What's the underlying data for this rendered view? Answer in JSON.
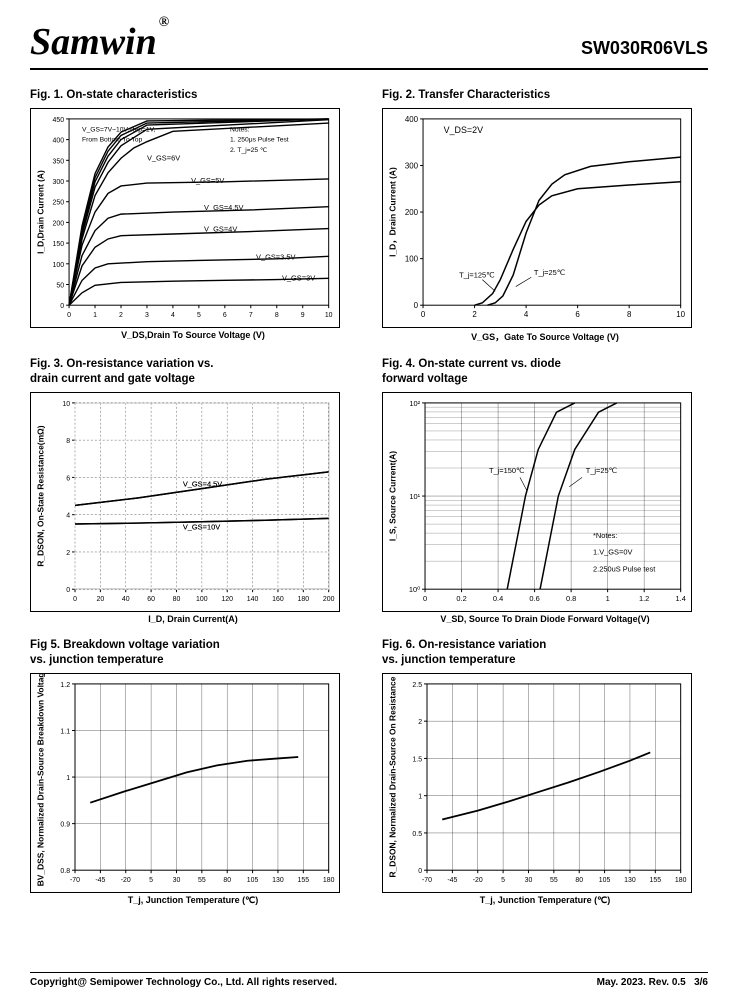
{
  "header": {
    "logo": "Samwin",
    "trademark": "®",
    "part_number": "SW030R06VLS"
  },
  "footer": {
    "copyright": "Copyright@ Semipower Technology Co., Ltd. All rights reserved.",
    "date": "May. 2023. Rev. 0.5",
    "page": "3/6"
  },
  "fig1": {
    "title": "Fig. 1. On-state characteristics",
    "xlabel": "V_DS,Drain To Source Voltage (V)",
    "ylabel": "I_D,Drain Current (A)",
    "xlim": [
      0,
      10
    ],
    "xticks": [
      0,
      1,
      2,
      3,
      4,
      5,
      6,
      7,
      8,
      9,
      10
    ],
    "ylim": [
      0,
      450
    ],
    "yticks": [
      0,
      50,
      100,
      150,
      200,
      250,
      300,
      350,
      400,
      450
    ],
    "notes": [
      "Notes:",
      "1. 250μs  Pulse Test",
      "2. T_j=25 ℃"
    ],
    "toptext": [
      "V_GS=7V~10V,step=1V,",
      "From Bottom To Top"
    ],
    "curves": [
      {
        "label": "V_GS=3V",
        "label_xy": [
          8.2,
          60
        ],
        "pts": [
          [
            0,
            0
          ],
          [
            0.5,
            30
          ],
          [
            1,
            48
          ],
          [
            2,
            55
          ],
          [
            4,
            58
          ],
          [
            6,
            60
          ],
          [
            8,
            62
          ],
          [
            10,
            65
          ]
        ]
      },
      {
        "label": "V_GS=3.5V",
        "label_xy": [
          7.2,
          110
        ],
        "pts": [
          [
            0,
            0
          ],
          [
            0.5,
            60
          ],
          [
            1,
            90
          ],
          [
            1.5,
            100
          ],
          [
            3,
            105
          ],
          [
            5,
            108
          ],
          [
            8,
            112
          ],
          [
            10,
            118
          ]
        ]
      },
      {
        "label": "V_GS=4V",
        "label_xy": [
          5.2,
          178
        ],
        "pts": [
          [
            0,
            0
          ],
          [
            0.5,
            95
          ],
          [
            1,
            140
          ],
          [
            1.5,
            160
          ],
          [
            2,
            168
          ],
          [
            4,
            172
          ],
          [
            7,
            178
          ],
          [
            10,
            185
          ]
        ]
      },
      {
        "label": "V_GS=4.5V",
        "label_xy": [
          5.2,
          230
        ],
        "pts": [
          [
            0,
            0
          ],
          [
            0.5,
            120
          ],
          [
            1,
            180
          ],
          [
            1.5,
            210
          ],
          [
            2,
            220
          ],
          [
            4,
            225
          ],
          [
            7,
            230
          ],
          [
            10,
            238
          ]
        ]
      },
      {
        "label": "V_GS=5V",
        "label_xy": [
          4.7,
          295
        ],
        "pts": [
          [
            0,
            0
          ],
          [
            0.5,
            145
          ],
          [
            1,
            225
          ],
          [
            1.5,
            270
          ],
          [
            2,
            288
          ],
          [
            3,
            295
          ],
          [
            6,
            298
          ],
          [
            10,
            305
          ]
        ]
      },
      {
        "label": "V_GS=6V",
        "label_xy": [
          3.0,
          350
        ],
        "pts": [
          [
            0,
            0
          ],
          [
            0.5,
            160
          ],
          [
            1,
            265
          ],
          [
            1.5,
            320
          ],
          [
            2,
            355
          ],
          [
            2.5,
            380
          ],
          [
            3,
            395
          ],
          [
            4,
            420
          ],
          [
            10,
            440
          ]
        ]
      },
      {
        "label": "",
        "pts": [
          [
            0,
            0
          ],
          [
            0.5,
            170
          ],
          [
            1,
            285
          ],
          [
            1.5,
            345
          ],
          [
            2,
            385
          ],
          [
            3,
            425
          ],
          [
            10,
            448
          ]
        ]
      },
      {
        "label": "",
        "pts": [
          [
            0,
            0
          ],
          [
            0.5,
            178
          ],
          [
            1,
            298
          ],
          [
            1.5,
            360
          ],
          [
            2,
            400
          ],
          [
            3,
            435
          ],
          [
            10,
            450
          ]
        ]
      },
      {
        "label": "",
        "pts": [
          [
            0,
            0
          ],
          [
            0.5,
            185
          ],
          [
            1,
            308
          ],
          [
            1.5,
            372
          ],
          [
            2,
            410
          ],
          [
            3,
            440
          ],
          [
            10,
            450
          ]
        ]
      },
      {
        "label": "",
        "pts": [
          [
            0,
            0
          ],
          [
            0.5,
            192
          ],
          [
            1,
            318
          ],
          [
            1.5,
            382
          ],
          [
            2,
            418
          ],
          [
            3,
            445
          ],
          [
            10,
            450
          ]
        ]
      }
    ],
    "line_width": 1.4,
    "tick_fontsize": 7,
    "label_fontsize": 7.5
  },
  "fig2": {
    "title": "Fig. 2. Transfer Characteristics",
    "xlabel": "V_GS，Gate To Source Voltage (V)",
    "ylabel": "I_D，Drain Current (A)",
    "xlim": [
      0,
      10
    ],
    "xticks": [
      0,
      2,
      4,
      6,
      8,
      10
    ],
    "ylim": [
      0,
      400
    ],
    "yticks": [
      0,
      100,
      200,
      300,
      400
    ],
    "cond": "V_DS=2V",
    "curves": [
      {
        "label": "T_j=125℃",
        "label_xy": [
          1.4,
          60
        ],
        "pts": [
          [
            2.0,
            0
          ],
          [
            2.3,
            5
          ],
          [
            2.7,
            25
          ],
          [
            3.0,
            55
          ],
          [
            3.5,
            120
          ],
          [
            4,
            180
          ],
          [
            4.5,
            215
          ],
          [
            5,
            235
          ],
          [
            6,
            250
          ],
          [
            8,
            258
          ],
          [
            10,
            265
          ]
        ]
      },
      {
        "label": "T_j=25℃",
        "label_xy": [
          4.3,
          65
        ],
        "pts": [
          [
            2.5,
            0
          ],
          [
            2.8,
            5
          ],
          [
            3.1,
            20
          ],
          [
            3.5,
            65
          ],
          [
            4,
            155
          ],
          [
            4.5,
            225
          ],
          [
            5,
            260
          ],
          [
            5.5,
            280
          ],
          [
            6.5,
            298
          ],
          [
            8,
            308
          ],
          [
            10,
            318
          ]
        ]
      }
    ],
    "line_width": 1.5,
    "tick_fontsize": 8
  },
  "fig3": {
    "title": "Fig. 3. On-resistance variation vs.\n          drain current and gate voltage",
    "xlabel": "I_D, Drain Current(A)",
    "ylabel": "R_DSON, On-State Resistance(mΩ)",
    "xlim": [
      0,
      200
    ],
    "xticks": [
      0,
      20,
      40,
      60,
      80,
      100,
      120,
      140,
      160,
      180,
      200
    ],
    "ylim": [
      0,
      10
    ],
    "yticks": [
      0.0,
      2.0,
      4.0,
      6.0,
      8.0,
      10.0
    ],
    "curves": [
      {
        "label": "V_GS=4.5V",
        "label_xy": [
          85,
          5.5
        ],
        "pts": [
          [
            0,
            4.5
          ],
          [
            50,
            4.9
          ],
          [
            100,
            5.4
          ],
          [
            150,
            5.9
          ],
          [
            200,
            6.3
          ]
        ]
      },
      {
        "label": "V_GS=10V",
        "label_xy": [
          85,
          3.2
        ],
        "pts": [
          [
            0,
            3.5
          ],
          [
            50,
            3.55
          ],
          [
            100,
            3.62
          ],
          [
            150,
            3.7
          ],
          [
            200,
            3.8
          ]
        ]
      }
    ],
    "line_width": 1.5,
    "tick_fontsize": 7
  },
  "fig4": {
    "title": "Fig. 4. On-state current vs. diode\n           forward voltage",
    "xlabel": "V_SD, Source To Drain Diode Forward Voltage(V)",
    "ylabel": "I_S, Source Current(A)",
    "xlim": [
      0,
      1.4
    ],
    "xticks": [
      0,
      0.2,
      0.4,
      0.6,
      0.8,
      1.0,
      1.2,
      1.4
    ],
    "ylim_log": [
      0,
      2
    ],
    "yticks": [
      "10⁰",
      "10¹",
      "10²"
    ],
    "notes": [
      "*Notes:",
      "1.V_GS=0V",
      "2.250uS Pulse test"
    ],
    "curves": [
      {
        "label": "T_j=150℃",
        "label_xy": [
          0.35,
          1.25
        ],
        "pts": [
          [
            0.45,
            0
          ],
          [
            0.47,
            0.2
          ],
          [
            0.5,
            0.5
          ],
          [
            0.55,
            1.0
          ],
          [
            0.62,
            1.5
          ],
          [
            0.72,
            1.9
          ],
          [
            0.82,
            2.0
          ]
        ]
      },
      {
        "label": "T_j=25℃",
        "label_xy": [
          0.88,
          1.25
        ],
        "pts": [
          [
            0.63,
            0
          ],
          [
            0.65,
            0.2
          ],
          [
            0.68,
            0.5
          ],
          [
            0.73,
            1.0
          ],
          [
            0.82,
            1.5
          ],
          [
            0.95,
            1.9
          ],
          [
            1.05,
            2.0
          ]
        ]
      }
    ],
    "line_width": 1.5,
    "tick_fontsize": 7.5
  },
  "fig5": {
    "title": "Fig 5. Breakdown voltage variation\n         vs. junction temperature",
    "xlabel": "T_j, Junction Temperature (℃)",
    "ylabel": "BV_DSS, Normalized\nDrain-Source Breakdown Voltage",
    "xlim": [
      -70,
      180
    ],
    "xticks": [
      -70,
      -45,
      -20,
      5,
      30,
      55,
      80,
      105,
      130,
      155,
      180
    ],
    "ylim": [
      0.8,
      1.2
    ],
    "yticks": [
      0.8,
      0.9,
      1.0,
      1.1,
      1.2
    ],
    "curves": [
      {
        "pts": [
          [
            -55,
            0.945
          ],
          [
            -20,
            0.97
          ],
          [
            10,
            0.99
          ],
          [
            40,
            1.01
          ],
          [
            70,
            1.025
          ],
          [
            100,
            1.035
          ],
          [
            130,
            1.04
          ],
          [
            150,
            1.043
          ]
        ]
      }
    ],
    "line_width": 1.8,
    "tick_fontsize": 7
  },
  "fig6": {
    "title": "Fig. 6. On-resistance variation\n          vs. junction temperature",
    "xlabel": "T_j, Junction Temperature (℃)",
    "ylabel": "R_DSON, Normalized\nDrain-Source On Resistance",
    "xlim": [
      -70,
      180
    ],
    "xticks": [
      -70,
      -45,
      -20,
      5,
      30,
      55,
      80,
      105,
      130,
      155,
      180
    ],
    "ylim": [
      0,
      2.5
    ],
    "yticks": [
      0,
      0.5,
      1.0,
      1.5,
      2.0,
      2.5
    ],
    "curves": [
      {
        "pts": [
          [
            -55,
            0.68
          ],
          [
            -20,
            0.8
          ],
          [
            10,
            0.92
          ],
          [
            40,
            1.05
          ],
          [
            70,
            1.18
          ],
          [
            100,
            1.32
          ],
          [
            130,
            1.47
          ],
          [
            150,
            1.58
          ]
        ]
      }
    ],
    "line_width": 1.8,
    "tick_fontsize": 7
  },
  "style": {
    "grid_color": "#000",
    "bg": "#ffffff",
    "line_color": "#000"
  }
}
